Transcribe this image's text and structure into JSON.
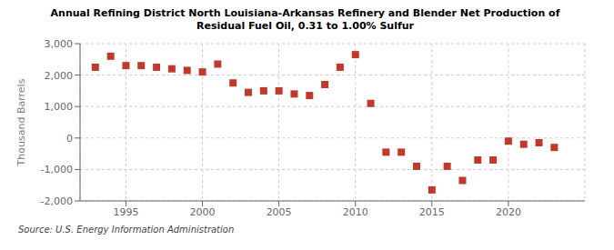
{
  "chart_data": {
    "type": "scatter",
    "title": "Annual Refining District North Louisiana-Arkansas Refinery and Blender Net Production of\nResidual Fuel Oil, 0.31 to 1.00% Sulfur",
    "ylabel": "Thousand Barrels",
    "annotations": [
      "Source: U.S. Energy Information Administration"
    ],
    "x": [
      1993,
      1994,
      1995,
      1996,
      1997,
      1998,
      1999,
      2000,
      2001,
      2002,
      2003,
      2004,
      2005,
      2006,
      2007,
      2008,
      2009,
      2010,
      2011,
      2012,
      2013,
      2014,
      2015,
      2016,
      2017,
      2018,
      2019,
      2020,
      2021,
      2022,
      2023
    ],
    "values": [
      2250,
      2600,
      2300,
      2300,
      2250,
      2200,
      2150,
      2100,
      2350,
      1750,
      1450,
      1500,
      1500,
      1400,
      1350,
      1700,
      2250,
      2650,
      1100,
      -450,
      -450,
      -900,
      -1650,
      -900,
      -1350,
      -700,
      -700,
      -100,
      -200,
      -150,
      -300
    ],
    "color": "#c0392b",
    "marker": "square",
    "xlim": [
      1992,
      2025
    ],
    "xticks": [
      1995,
      2000,
      2005,
      2010,
      2015,
      2020
    ],
    "ylim": [
      -2000,
      3000
    ],
    "yticks": [
      {
        "value": -2000,
        "label": "-2,000"
      },
      {
        "value": -1000,
        "label": "-1,000"
      },
      0,
      {
        "value": 1000,
        "label": "1,000"
      },
      {
        "value": 2000,
        "label": "2,000"
      },
      {
        "value": 3000,
        "label": "3,000"
      }
    ],
    "grid": true
  }
}
